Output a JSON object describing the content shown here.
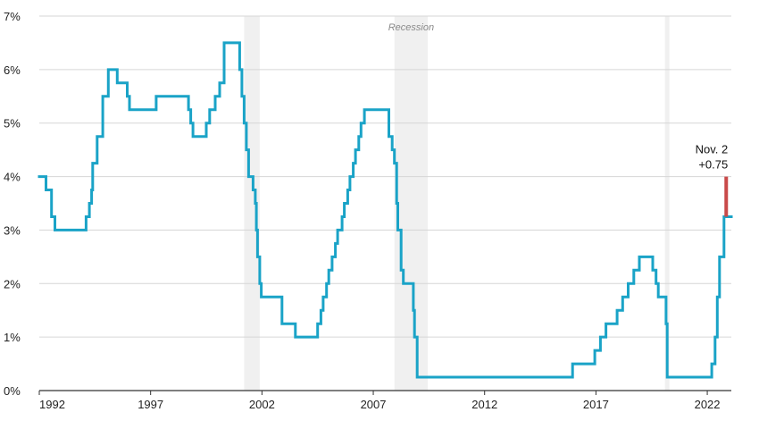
{
  "colors": {
    "series": "#1aa3c7",
    "increase": "#c94a4a",
    "recession": "#f0f0f0",
    "grid": "#d6d6d6",
    "axis": "#333333"
  },
  "recession_label": "Recession",
  "chart_data": {
    "type": "line",
    "step": true,
    "title": "",
    "xlabel": "",
    "ylabel": "",
    "xlim": [
      1992,
      2023.08
    ],
    "ylim": [
      0,
      7
    ],
    "x_ticks": [
      1992,
      1997,
      2002,
      2007,
      2012,
      2017,
      2022
    ],
    "x_tick_labels": [
      "1992",
      "1997",
      "2002",
      "2007",
      "2012",
      "2017",
      "2022"
    ],
    "y_ticks": [
      0,
      1,
      2,
      3,
      4,
      5,
      6,
      7
    ],
    "y_tick_labels": [
      "0%",
      "1%",
      "2%",
      "3%",
      "4%",
      "5%",
      "6%",
      "7%"
    ],
    "grid": "horizontal",
    "recessions": [
      [
        2001.2,
        2001.9
      ],
      [
        2007.95,
        2009.45
      ],
      [
        2020.1,
        2020.3
      ]
    ],
    "series": [
      {
        "points": [
          [
            1992.0,
            4.0
          ],
          [
            1992.3,
            3.75
          ],
          [
            1992.55,
            3.25
          ],
          [
            1992.7,
            3.0
          ],
          [
            1994.1,
            3.25
          ],
          [
            1994.25,
            3.5
          ],
          [
            1994.35,
            3.75
          ],
          [
            1994.4,
            4.25
          ],
          [
            1994.6,
            4.75
          ],
          [
            1994.85,
            5.5
          ],
          [
            1995.1,
            6.0
          ],
          [
            1995.5,
            5.75
          ],
          [
            1995.95,
            5.5
          ],
          [
            1996.05,
            5.25
          ],
          [
            1997.25,
            5.5
          ],
          [
            1998.7,
            5.25
          ],
          [
            1998.8,
            5.0
          ],
          [
            1998.9,
            4.75
          ],
          [
            1999.5,
            5.0
          ],
          [
            1999.65,
            5.25
          ],
          [
            1999.9,
            5.5
          ],
          [
            2000.1,
            5.75
          ],
          [
            2000.3,
            6.5
          ],
          [
            2001.0,
            6.0
          ],
          [
            2001.1,
            5.5
          ],
          [
            2001.2,
            5.0
          ],
          [
            2001.3,
            4.5
          ],
          [
            2001.4,
            4.0
          ],
          [
            2001.6,
            3.75
          ],
          [
            2001.7,
            3.5
          ],
          [
            2001.75,
            3.0
          ],
          [
            2001.8,
            2.5
          ],
          [
            2001.9,
            2.0
          ],
          [
            2001.97,
            1.75
          ],
          [
            2002.9,
            1.25
          ],
          [
            2003.5,
            1.0
          ],
          [
            2004.5,
            1.25
          ],
          [
            2004.65,
            1.5
          ],
          [
            2004.75,
            1.75
          ],
          [
            2004.9,
            2.0
          ],
          [
            2005.0,
            2.25
          ],
          [
            2005.15,
            2.5
          ],
          [
            2005.3,
            2.75
          ],
          [
            2005.4,
            3.0
          ],
          [
            2005.6,
            3.25
          ],
          [
            2005.7,
            3.5
          ],
          [
            2005.85,
            3.75
          ],
          [
            2005.95,
            4.0
          ],
          [
            2006.1,
            4.25
          ],
          [
            2006.2,
            4.5
          ],
          [
            2006.35,
            4.75
          ],
          [
            2006.45,
            5.0
          ],
          [
            2006.6,
            5.25
          ],
          [
            2007.7,
            4.75
          ],
          [
            2007.85,
            4.5
          ],
          [
            2007.95,
            4.25
          ],
          [
            2008.05,
            3.5
          ],
          [
            2008.1,
            3.0
          ],
          [
            2008.25,
            2.25
          ],
          [
            2008.35,
            2.0
          ],
          [
            2008.8,
            1.5
          ],
          [
            2008.85,
            1.0
          ],
          [
            2008.97,
            0.25
          ],
          [
            2015.95,
            0.5
          ],
          [
            2016.95,
            0.75
          ],
          [
            2017.2,
            1.0
          ],
          [
            2017.45,
            1.25
          ],
          [
            2017.95,
            1.5
          ],
          [
            2018.2,
            1.75
          ],
          [
            2018.45,
            2.0
          ],
          [
            2018.7,
            2.25
          ],
          [
            2018.95,
            2.5
          ],
          [
            2019.55,
            2.25
          ],
          [
            2019.7,
            2.0
          ],
          [
            2019.8,
            1.75
          ],
          [
            2020.15,
            1.25
          ],
          [
            2020.2,
            0.25
          ],
          [
            2022.2,
            0.5
          ],
          [
            2022.35,
            1.0
          ],
          [
            2022.45,
            1.75
          ],
          [
            2022.55,
            2.5
          ],
          [
            2022.75,
            3.25
          ],
          [
            2023.08,
            3.25
          ]
        ]
      }
    ],
    "annotation": {
      "label_line1": "Nov. 2",
      "label_line2": "+0.75",
      "x": 2022.85,
      "from": 3.25,
      "to": 4.0
    }
  }
}
